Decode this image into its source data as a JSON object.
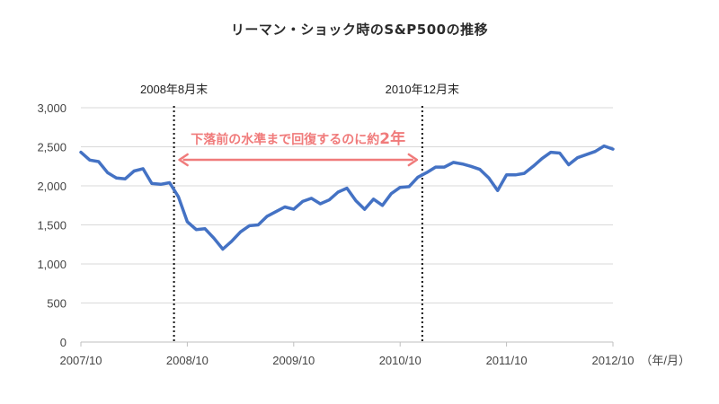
{
  "chart_data": {
    "type": "line",
    "title": "リーマン・ショック時のS&P500の推移",
    "unit_label": "（年/月）",
    "ylim": [
      0,
      3000
    ],
    "yticks": [
      "0",
      "500",
      "1,000",
      "1,500",
      "2,000",
      "2,500",
      "3,000"
    ],
    "ytick_values": [
      0,
      500,
      1000,
      1500,
      2000,
      2500,
      3000
    ],
    "xticks": [
      "2007/10",
      "2008/10",
      "2009/10",
      "2010/10",
      "2011/10",
      "2012/10"
    ],
    "x_start": "2007/10",
    "grid": true,
    "series": [
      {
        "color": "#4472c4",
        "values": [
          2430,
          2330,
          2310,
          2170,
          2100,
          2090,
          2190,
          2220,
          2030,
          2020,
          2040,
          1860,
          1540,
          1440,
          1450,
          1330,
          1190,
          1290,
          1410,
          1490,
          1500,
          1610,
          1670,
          1730,
          1700,
          1800,
          1840,
          1770,
          1820,
          1920,
          1970,
          1810,
          1700,
          1830,
          1750,
          1900,
          1980,
          1990,
          2110,
          2170,
          2240,
          2240,
          2300,
          2280,
          2250,
          2210,
          2100,
          1940,
          2140,
          2140,
          2160,
          2250,
          2350,
          2430,
          2420,
          2270,
          2360,
          2400,
          2440,
          2510,
          2470
        ]
      }
    ],
    "annotations": {
      "marker_start": {
        "label": "2008年8月末",
        "x_index": 10.5
      },
      "marker_end": {
        "label": "2010年12月末",
        "x_index": 38.5
      },
      "span_text": "下落前の水準まで回復するのに約",
      "span_emph": "2年",
      "span_color": "#f07b7b"
    }
  }
}
